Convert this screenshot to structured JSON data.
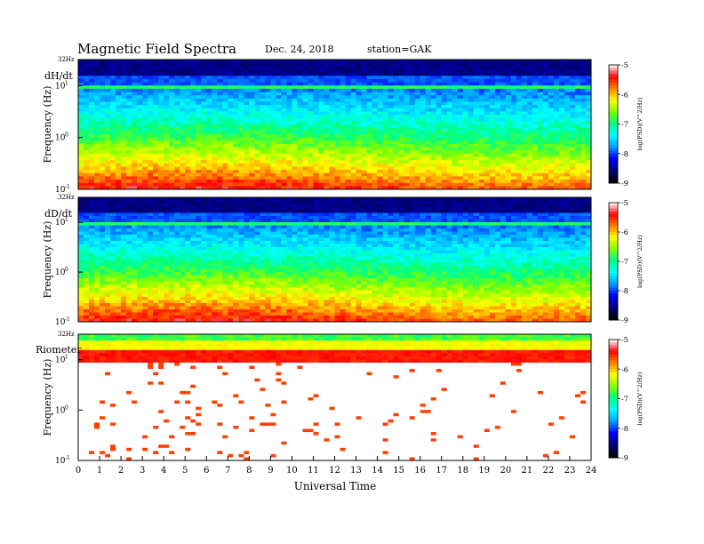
{
  "header": {
    "title": "Magnetic  Field  Spectra",
    "date": "Dec. 24, 2018",
    "station": "station=GAK"
  },
  "chart_data": [
    {
      "type": "heatmap",
      "panel_label": "dH/dt",
      "ylabel": "Frequency  (Hz)",
      "y_top_label": "32Hz",
      "y_ticks": [
        {
          "base": "10",
          "exp": "1",
          "value": 10
        },
        {
          "base": "10",
          "exp": "0",
          "value": 1
        },
        {
          "base": "10",
          "exp": "-1",
          "value": 0.1
        }
      ],
      "y_scale": "log",
      "ylim": [
        0.1,
        32
      ],
      "xlim": [
        0,
        24
      ],
      "colorbar_ticks": [
        "-5",
        "-6",
        "-7",
        "-8",
        "-9"
      ],
      "colorbar_label": "log(PSD)(V^2/Hz)",
      "profile_description": "strong power at low frequencies, blue at mid, line near 8 Hz"
    },
    {
      "type": "heatmap",
      "panel_label": "dD/dt",
      "ylabel": "Frequency  (Hz)",
      "y_top_label": "32Hz",
      "y_ticks": [
        {
          "base": "10",
          "exp": "1",
          "value": 10
        },
        {
          "base": "10",
          "exp": "0",
          "value": 1
        },
        {
          "base": "10",
          "exp": "-1",
          "value": 0.1
        }
      ],
      "y_scale": "log",
      "ylim": [
        0.1,
        32
      ],
      "xlim": [
        0,
        24
      ],
      "colorbar_ticks": [
        "-5",
        "-6",
        "-7",
        "-8",
        "-9"
      ],
      "colorbar_label": "log(PSD)(V^2/Hz)"
    },
    {
      "type": "heatmap",
      "panel_label": "Riometer",
      "ylabel": "Frequency  (Hz)",
      "y_top_label": "32Hz",
      "y_ticks": [
        {
          "base": "10",
          "exp": "1",
          "value": 10
        },
        {
          "base": "10",
          "exp": "0",
          "value": 1
        },
        {
          "base": "10",
          "exp": "-1",
          "value": 0.1
        }
      ],
      "y_scale": "log",
      "ylim": [
        0.1,
        32
      ],
      "xlim": [
        0,
        24
      ],
      "colorbar_ticks": [
        "-5",
        "-6",
        "-7",
        "-8",
        "-9"
      ],
      "colorbar_label": "log(PSD)(V^2/Hz)"
    }
  ],
  "x_axis": {
    "label": "Universal  Time",
    "ticks": [
      "0",
      "1",
      "2",
      "3",
      "4",
      "5",
      "6",
      "7",
      "8",
      "9",
      "10",
      "11",
      "12",
      "13",
      "14",
      "15",
      "16",
      "17",
      "18",
      "19",
      "20",
      "21",
      "22",
      "23",
      "24"
    ]
  },
  "colors": {
    "colormap": [
      "#000000",
      "#000080",
      "#0000ff",
      "#00a0ff",
      "#00ffff",
      "#00ff80",
      "#80ff00",
      "#ffff00",
      "#ff8000",
      "#ff0000",
      "#ffffff"
    ]
  }
}
